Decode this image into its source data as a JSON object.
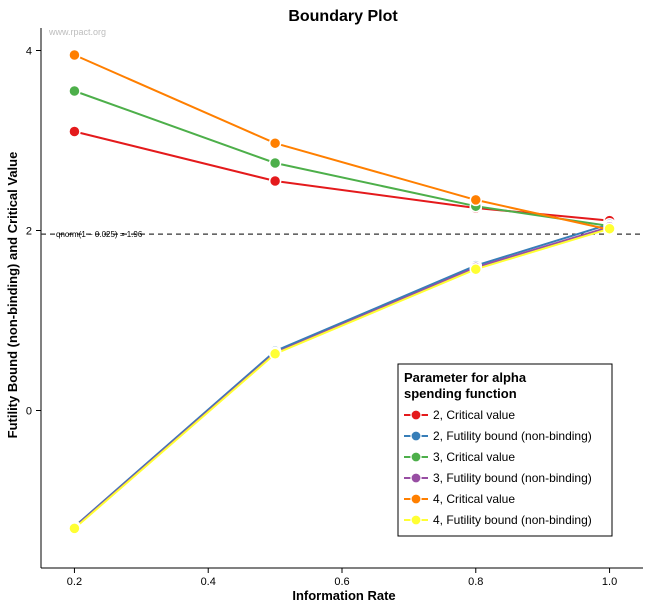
{
  "chart_data": {
    "type": "line",
    "title": "Boundary Plot",
    "xlabel": "Information Rate",
    "ylabel": "Futility Bound (non-binding) and Critical Value",
    "watermark": "www.rpact.org",
    "xlim": [
      0.15,
      1.05
    ],
    "ylim": [
      -1.75,
      4.25
    ],
    "x_ticks": [
      0.2,
      0.4,
      0.6,
      0.8,
      1.0
    ],
    "x_tick_labels": [
      "0.2",
      "0.4",
      "0.6",
      "0.8",
      "1.0"
    ],
    "y_ticks": [
      0,
      2,
      4
    ],
    "y_tick_labels": [
      "0",
      "2",
      "4"
    ],
    "reference_line": {
      "y": 1.96,
      "style": "dashed",
      "label": "qnorm(1 − 0.025) = 1.96"
    },
    "legend": {
      "title_line1": "Parameter for alpha",
      "title_line2": "spending function",
      "position": "bottom-right"
    },
    "x": [
      0.2,
      0.5,
      0.8,
      1.0
    ],
    "series": [
      {
        "name": "2, Critical value",
        "color": "#e41a1c",
        "values": [
          3.1,
          2.55,
          2.25,
          2.11
        ]
      },
      {
        "name": "2, Futility bound (non-binding)",
        "color": "#377eb8",
        "values": [
          -1.29,
          0.66,
          1.61,
          2.07
        ]
      },
      {
        "name": "3, Critical value",
        "color": "#4daf4a",
        "values": [
          3.55,
          2.75,
          2.27,
          2.05
        ]
      },
      {
        "name": "3, Futility bound (non-binding)",
        "color": "#984ea3",
        "values": [
          -1.3,
          0.64,
          1.59,
          2.04
        ]
      },
      {
        "name": "4, Critical value",
        "color": "#ff7f00",
        "values": [
          3.95,
          2.97,
          2.34,
          2.01
        ]
      },
      {
        "name": "4, Futility bound (non-binding)",
        "color": "#ffff33",
        "values": [
          -1.31,
          0.63,
          1.57,
          2.02
        ]
      }
    ]
  }
}
